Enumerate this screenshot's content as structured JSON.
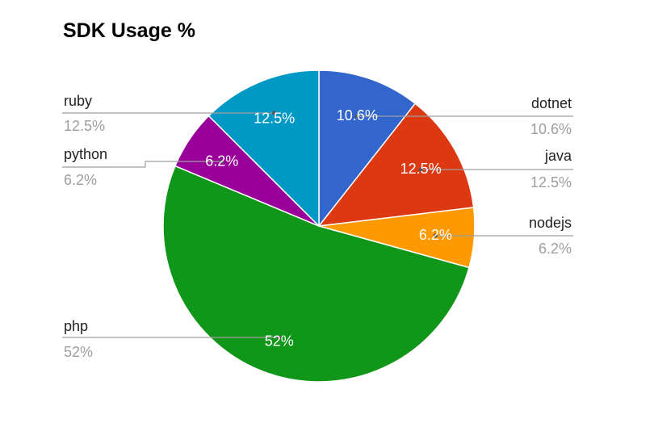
{
  "chart_data": {
    "type": "pie",
    "title": "SDK Usage %",
    "slices": [
      {
        "label": "dotnet",
        "value": 10.6,
        "display": "10.6%",
        "color": "#3366cc"
      },
      {
        "label": "java",
        "value": 12.5,
        "display": "12.5%",
        "color": "#dc3912"
      },
      {
        "label": "nodejs",
        "value": 6.2,
        "display": "6.2%",
        "color": "#ff9900"
      },
      {
        "label": "php",
        "value": 52,
        "display": "52%",
        "color": "#109618"
      },
      {
        "label": "python",
        "value": 6.2,
        "display": "6.2%",
        "color": "#990099"
      },
      {
        "label": "ruby",
        "value": 12.5,
        "display": "12.5%",
        "color": "#0099c6"
      }
    ]
  }
}
